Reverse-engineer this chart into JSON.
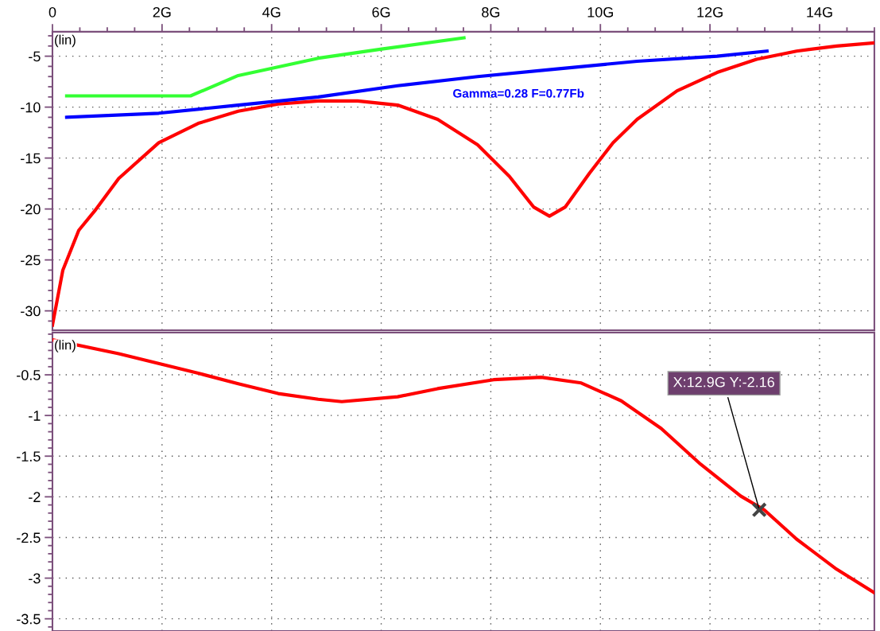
{
  "chart_data": [
    {
      "type": "line",
      "xlim": [
        0,
        15
      ],
      "xticks": [
        {
          "value": 0,
          "label": "0"
        },
        {
          "value": 2,
          "label": "2G"
        },
        {
          "value": 4,
          "label": "4G"
        },
        {
          "value": 6,
          "label": "6G"
        },
        {
          "value": 8,
          "label": "8G"
        },
        {
          "value": 10,
          "label": "10G"
        },
        {
          "value": 12,
          "label": "12G"
        },
        {
          "value": 14,
          "label": "14G"
        }
      ],
      "ylim": [
        -31.9,
        -2.6
      ],
      "yticks": [
        -5,
        -10,
        -15,
        -20,
        -25,
        -30
      ],
      "grid": true,
      "marker": "none",
      "line_style": "solid",
      "annotations": [
        "(lin)",
        "Gamma=0.28 F=0.77Fb"
      ],
      "series": [
        {
          "color": "#ff0000",
          "x": [
            0,
            0.19,
            0.48,
            0.77,
            1.21,
            1.94,
            2.66,
            3.39,
            4.12,
            4.85,
            5.57,
            6.3,
            7.03,
            7.76,
            8.34,
            8.78,
            9.07,
            9.36,
            9.8,
            10.23,
            10.67,
            11.4,
            12.13,
            12.85,
            13.58,
            14.31,
            15
          ],
          "values": [
            -31.4,
            -26.0,
            -22.1,
            -20.2,
            -17.0,
            -13.5,
            -11.6,
            -10.4,
            -9.7,
            -9.4,
            -9.4,
            -9.8,
            -11.2,
            -13.7,
            -16.8,
            -19.8,
            -20.7,
            -19.8,
            -16.5,
            -13.5,
            -11.2,
            -8.4,
            -6.6,
            -5.3,
            -4.5,
            -4.0,
            -3.7
          ]
        },
        {
          "color": "#33ff33",
          "x": [
            0.26,
            2.52,
            3.39,
            4.85,
            6.01,
            7.51
          ],
          "values": [
            -8.9,
            -8.9,
            -6.9,
            -5.2,
            -4.3,
            -3.2
          ]
        },
        {
          "color": "#0000ff",
          "x": [
            0.26,
            1.94,
            3.39,
            4.85,
            6.3,
            7.76,
            9.21,
            10.67,
            12.13,
            13.04
          ],
          "values": [
            -11.0,
            -10.6,
            -9.8,
            -9.0,
            -7.9,
            -7.0,
            -6.25,
            -5.5,
            -5.0,
            -4.5
          ]
        }
      ]
    },
    {
      "type": "line",
      "xlim": [
        0,
        15
      ],
      "xticks": [
        0,
        2,
        4,
        6,
        8,
        10,
        12,
        14
      ],
      "tick_labels": "y",
      "ylim": [
        -3.65,
        0.02
      ],
      "yticks": [
        -0.5,
        -1,
        -1.5,
        -2,
        -2.5,
        -3,
        -3.5
      ],
      "grid": true,
      "marker": "none",
      "line_style": "solid",
      "annotations": [
        "(lin)",
        {
          "text": "X:12.9G Y:-2.16",
          "x": 12.9,
          "y": -2.16
        }
      ],
      "series": [
        {
          "color": "#ff0000",
          "x": [
            0,
            1.21,
            2.66,
            3.39,
            4.12,
            4.85,
            5.28,
            6.3,
            7.03,
            8.05,
            8.92,
            9.65,
            10.38,
            11.11,
            11.83,
            12.56,
            12.99,
            13.58,
            14.31,
            15
          ],
          "values": [
            -0.07,
            -0.24,
            -0.48,
            -0.61,
            -0.73,
            -0.8,
            -0.83,
            -0.77,
            -0.67,
            -0.56,
            -0.53,
            -0.6,
            -0.82,
            -1.16,
            -1.6,
            -1.99,
            -2.16,
            -2.52,
            -2.89,
            -3.18
          ]
        }
      ]
    }
  ]
}
